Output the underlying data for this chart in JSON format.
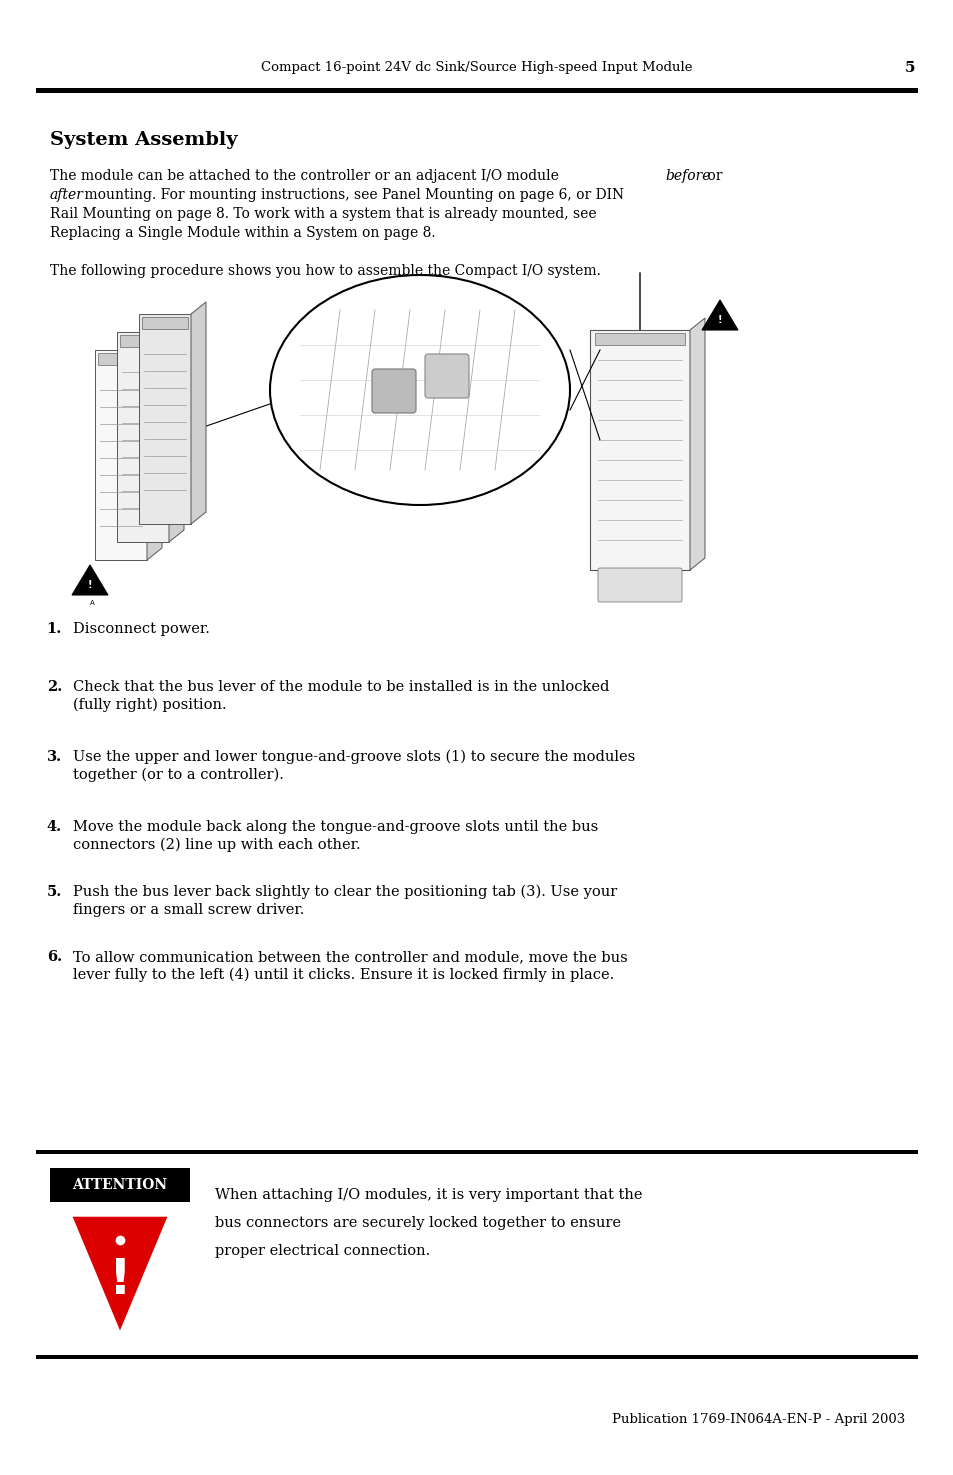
{
  "page_title": "Compact 16-point 24V dc Sink/Source High-speed Input Module",
  "page_number": "5",
  "section_title": "System Assembly",
  "para1_line1_pre": "The module can be attached to the controller or an adjacent I/O module ",
  "para1_line1_italic": "before",
  "para1_line1_post": " or",
  "para1_line2_italic": "after",
  "para1_line2_post": " mounting. For mounting instructions, see Panel Mounting on page 6, or DIN",
  "para1_line3": "Rail Mounting on page 8. To work with a system that is already mounted, see",
  "para1_line4": "Replacing a Single Module within a System on page 8.",
  "para2": "The following procedure shows you how to assemble the Compact I/O system.",
  "steps": [
    [
      "Disconnect power."
    ],
    [
      "Check that the bus lever of the module to be installed is in the unlocked",
      "(fully right) position."
    ],
    [
      "Use the upper and lower tongue-and-groove slots (1) to secure the modules",
      "together (or to a controller)."
    ],
    [
      "Move the module back along the tongue-and-groove slots until the bus",
      "connectors (2) line up with each other."
    ],
    [
      "Push the bus lever back slightly to clear the positioning tab (3). Use your",
      "fingers or a small screw driver."
    ],
    [
      "To allow communication between the controller and module, move the bus",
      "lever fully to the left (4) until it clicks. Ensure it is locked firmly in place."
    ]
  ],
  "attention_label": "ATTENTION",
  "attention_lines": [
    "When attaching I/O modules, it is very important that the",
    "bus connectors are securely locked together to ensure",
    "proper electrical connection."
  ],
  "footer": "Publication 1769-IN064A-EN-P - April 2003",
  "bg_color": "#ffffff",
  "text_color": "#000000",
  "red_color": "#dd0000",
  "font": "DejaVu Serif"
}
